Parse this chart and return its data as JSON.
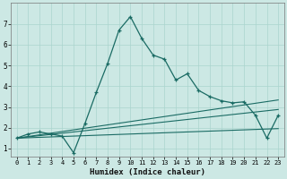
{
  "title": "",
  "xlabel": "Humidex (Indice chaleur)",
  "ylabel": "",
  "bg_color": "#cce8e4",
  "line_color": "#1a6b64",
  "grid_color": "#aad4ce",
  "x_data": [
    0,
    1,
    2,
    3,
    4,
    5,
    6,
    7,
    8,
    9,
    10,
    11,
    12,
    13,
    14,
    15,
    16,
    17,
    18,
    19,
    20,
    21,
    22,
    23
  ],
  "y_main": [
    1.5,
    1.7,
    1.8,
    1.7,
    1.6,
    0.8,
    2.2,
    3.7,
    5.1,
    6.7,
    7.35,
    6.3,
    5.5,
    5.3,
    4.3,
    4.6,
    3.8,
    3.5,
    3.3,
    3.2,
    3.25,
    2.6,
    1.5,
    2.6
  ],
  "y_line1": [
    1.5,
    1.58,
    1.66,
    1.74,
    1.82,
    1.9,
    1.98,
    2.06,
    2.14,
    2.22,
    2.3,
    2.38,
    2.46,
    2.54,
    2.62,
    2.7,
    2.78,
    2.86,
    2.94,
    3.02,
    3.1,
    3.18,
    3.26,
    3.34
  ],
  "y_line2": [
    1.5,
    1.56,
    1.62,
    1.68,
    1.74,
    1.8,
    1.86,
    1.92,
    1.98,
    2.04,
    2.1,
    2.16,
    2.22,
    2.28,
    2.34,
    2.4,
    2.46,
    2.52,
    2.58,
    2.64,
    2.7,
    2.76,
    2.82,
    2.88
  ],
  "y_line3": [
    1.5,
    1.52,
    1.54,
    1.56,
    1.58,
    1.6,
    1.62,
    1.64,
    1.66,
    1.68,
    1.7,
    1.72,
    1.74,
    1.76,
    1.78,
    1.8,
    1.82,
    1.84,
    1.86,
    1.88,
    1.9,
    1.92,
    1.94,
    1.96
  ],
  "ylim": [
    0.6,
    8.0
  ],
  "xlim": [
    -0.5,
    23.5
  ],
  "yticks": [
    1,
    2,
    3,
    4,
    5,
    6,
    7
  ],
  "xticks": [
    0,
    1,
    2,
    3,
    4,
    5,
    6,
    7,
    8,
    9,
    10,
    11,
    12,
    13,
    14,
    15,
    16,
    17,
    18,
    19,
    20,
    21,
    22,
    23
  ]
}
